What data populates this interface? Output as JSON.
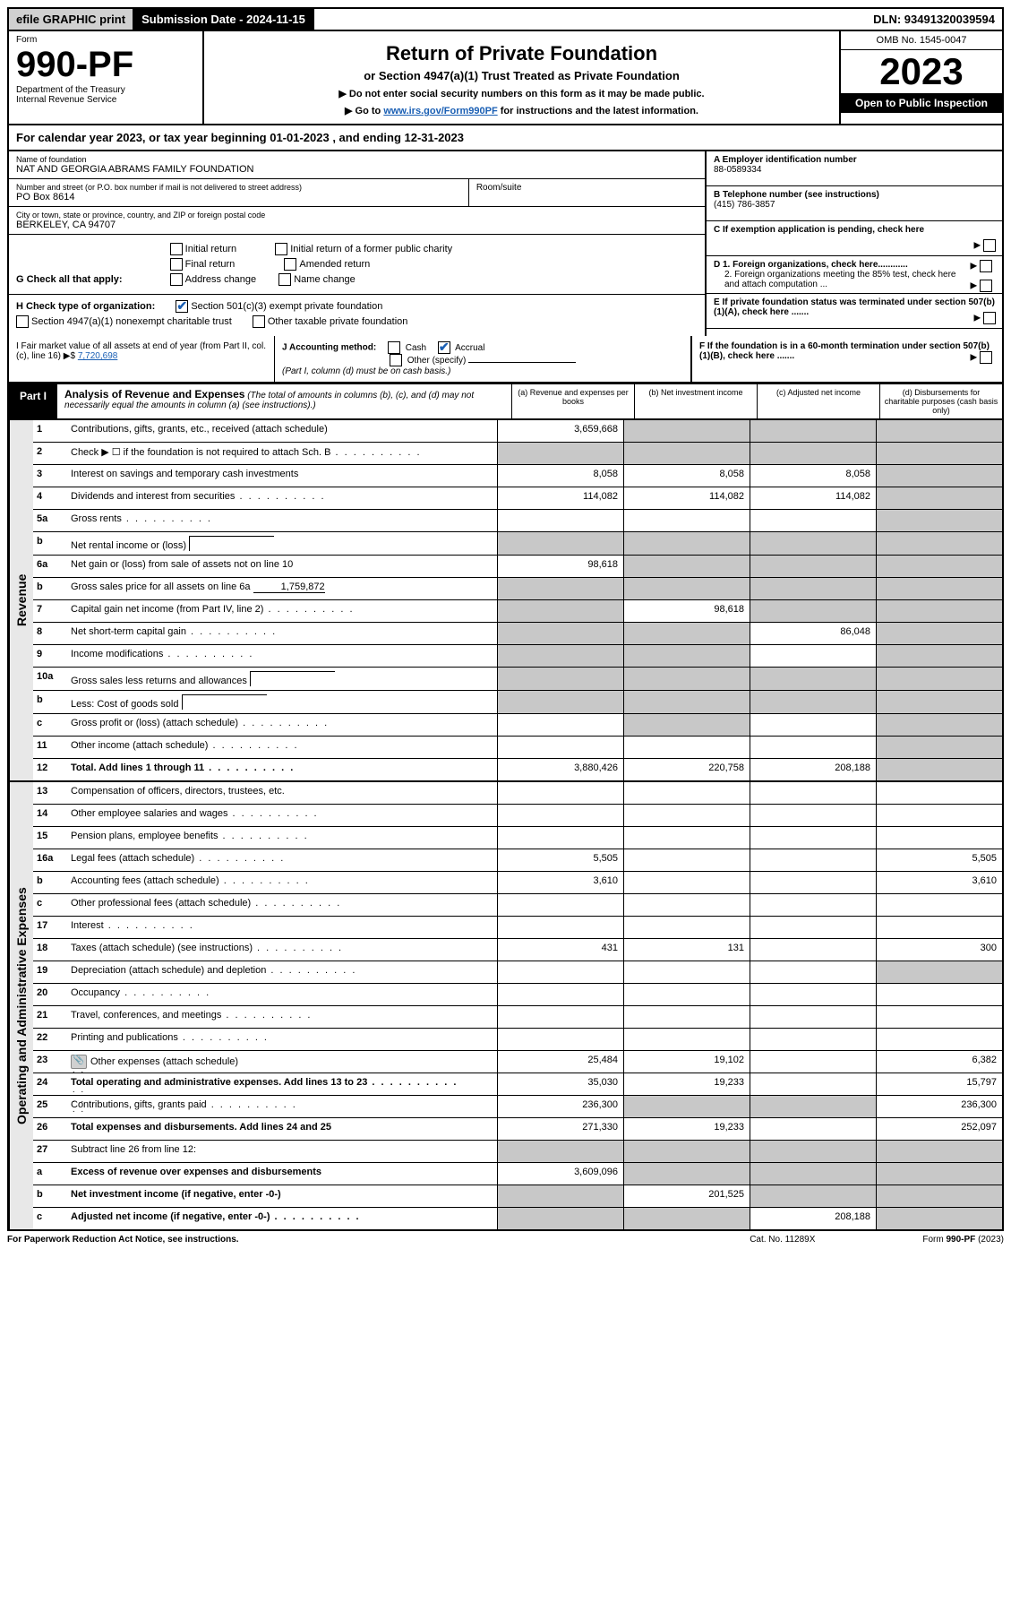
{
  "top": {
    "efile": "efile GRAPHIC print",
    "submission_label": "Submission Date - 2024-11-15",
    "dln": "DLN: 93491320039594"
  },
  "header": {
    "form_word": "Form",
    "form_number": "990-PF",
    "dept": "Department of the Treasury",
    "irs": "Internal Revenue Service",
    "title": "Return of Private Foundation",
    "subtitle": "or Section 4947(a)(1) Trust Treated as Private Foundation",
    "notice1": "▶ Do not enter social security numbers on this form as it may be made public.",
    "notice2_prefix": "▶ Go to ",
    "notice2_link": "www.irs.gov/Form990PF",
    "notice2_suffix": " for instructions and the latest information.",
    "omb": "OMB No. 1545-0047",
    "year": "2023",
    "open_public": "Open to Public Inspection"
  },
  "calendar": "For calendar year 2023, or tax year beginning 01-01-2023             , and ending 12-31-2023",
  "foundation": {
    "name_label": "Name of foundation",
    "name": "NAT AND GEORGIA ABRAMS FAMILY FOUNDATION",
    "address_label": "Number and street (or P.O. box number if mail is not delivered to street address)",
    "address": "PO Box 8614",
    "room_label": "Room/suite",
    "city_label": "City or town, state or province, country, and ZIP or foreign postal code",
    "city": "BERKELEY, CA  94707"
  },
  "right_info": {
    "a_label": "A Employer identification number",
    "a_value": "88-0589334",
    "b_label": "B Telephone number (see instructions)",
    "b_value": "(415) 786-3857",
    "c_label": "C If exemption application is pending, check here",
    "d1_label": "D 1. Foreign organizations, check here............",
    "d2_label": "2. Foreign organizations meeting the 85% test, check here and attach computation ...",
    "e_label": "E If private foundation status was terminated under section 507(b)(1)(A), check here .......",
    "f_label": "F If the foundation is in a 60-month termination under section 507(b)(1)(B), check here ......."
  },
  "g_section": {
    "label": "G Check all that apply:",
    "initial": "Initial return",
    "initial_former": "Initial return of a former public charity",
    "final": "Final return",
    "amended": "Amended return",
    "address_change": "Address change",
    "name_change": "Name change"
  },
  "h_section": {
    "label": "H Check type of organization:",
    "opt1": "Section 501(c)(3) exempt private foundation",
    "opt2": "Section 4947(a)(1) nonexempt charitable trust",
    "opt3": "Other taxable private foundation"
  },
  "i_section": {
    "label": "I Fair market value of all assets at end of year (from Part II, col. (c), line 16) ▶$",
    "value": "7,720,698"
  },
  "j_section": {
    "label": "J Accounting method:",
    "cash": "Cash",
    "accrual": "Accrual",
    "other": "Other (specify)",
    "note": "(Part I, column (d) must be on cash basis.)"
  },
  "part1": {
    "label": "Part I",
    "title": "Analysis of Revenue and Expenses",
    "subtitle": "(The total of amounts in columns (b), (c), and (d) may not necessarily equal the amounts in column (a) (see instructions).)",
    "col_a": "(a) Revenue and expenses per books",
    "col_b": "(b) Net investment income",
    "col_c": "(c) Adjusted net income",
    "col_d": "(d) Disbursements for charitable purposes (cash basis only)"
  },
  "side_labels": {
    "revenue": "Revenue",
    "expenses": "Operating and Administrative Expenses"
  },
  "revenue_rows": [
    {
      "num": "1",
      "desc": "Contributions, gifts, grants, etc., received (attach schedule)",
      "a": "3,659,668",
      "b": "",
      "c": "",
      "d": "",
      "grey_b": true,
      "grey_c": true,
      "grey_d": true
    },
    {
      "num": "2",
      "desc": "Check ▶ ☐ if the foundation is not required to attach Sch. B",
      "a": "",
      "b": "",
      "c": "",
      "d": "",
      "grey_a": true,
      "grey_b": true,
      "grey_c": true,
      "grey_d": true,
      "dots": true
    },
    {
      "num": "3",
      "desc": "Interest on savings and temporary cash investments",
      "a": "8,058",
      "b": "8,058",
      "c": "8,058",
      "d": "",
      "grey_d": true
    },
    {
      "num": "4",
      "desc": "Dividends and interest from securities",
      "a": "114,082",
      "b": "114,082",
      "c": "114,082",
      "d": "",
      "grey_d": true,
      "dots": true
    },
    {
      "num": "5a",
      "desc": "Gross rents",
      "a": "",
      "b": "",
      "c": "",
      "d": "",
      "grey_d": true,
      "dots": true
    },
    {
      "num": "b",
      "desc": "Net rental income or (loss)",
      "a": "",
      "b": "",
      "c": "",
      "d": "",
      "inline_box": true,
      "grey_a": true,
      "grey_b": true,
      "grey_c": true,
      "grey_d": true
    },
    {
      "num": "6a",
      "desc": "Net gain or (loss) from sale of assets not on line 10",
      "a": "98,618",
      "b": "",
      "c": "",
      "d": "",
      "grey_b": true,
      "grey_c": true,
      "grey_d": true
    },
    {
      "num": "b",
      "desc": "Gross sales price for all assets on line 6a",
      "a": "",
      "b": "",
      "c": "",
      "d": "",
      "underline_val": "1,759,872",
      "grey_a": true,
      "grey_b": true,
      "grey_c": true,
      "grey_d": true
    },
    {
      "num": "7",
      "desc": "Capital gain net income (from Part IV, line 2)",
      "a": "",
      "b": "98,618",
      "c": "",
      "d": "",
      "grey_a": true,
      "grey_c": true,
      "grey_d": true,
      "dots": true
    },
    {
      "num": "8",
      "desc": "Net short-term capital gain",
      "a": "",
      "b": "",
      "c": "86,048",
      "d": "",
      "grey_a": true,
      "grey_b": true,
      "grey_d": true,
      "dots": true
    },
    {
      "num": "9",
      "desc": "Income modifications",
      "a": "",
      "b": "",
      "c": "",
      "d": "",
      "grey_a": true,
      "grey_b": true,
      "grey_d": true,
      "dots": true
    },
    {
      "num": "10a",
      "desc": "Gross sales less returns and allowances",
      "a": "",
      "b": "",
      "c": "",
      "d": "",
      "inline_box": true,
      "grey_a": true,
      "grey_b": true,
      "grey_c": true,
      "grey_d": true
    },
    {
      "num": "b",
      "desc": "Less: Cost of goods sold",
      "a": "",
      "b": "",
      "c": "",
      "d": "",
      "inline_box": true,
      "grey_a": true,
      "grey_b": true,
      "grey_c": true,
      "grey_d": true,
      "dots": true
    },
    {
      "num": "c",
      "desc": "Gross profit or (loss) (attach schedule)",
      "a": "",
      "b": "",
      "c": "",
      "d": "",
      "grey_b": true,
      "grey_d": true,
      "dots": true
    },
    {
      "num": "11",
      "desc": "Other income (attach schedule)",
      "a": "",
      "b": "",
      "c": "",
      "d": "",
      "grey_d": true,
      "dots": true
    },
    {
      "num": "12",
      "desc": "Total. Add lines 1 through 11",
      "a": "3,880,426",
      "b": "220,758",
      "c": "208,188",
      "d": "",
      "bold": true,
      "grey_d": true,
      "dots": true
    }
  ],
  "expense_rows": [
    {
      "num": "13",
      "desc": "Compensation of officers, directors, trustees, etc.",
      "a": "",
      "b": "",
      "c": "",
      "d": ""
    },
    {
      "num": "14",
      "desc": "Other employee salaries and wages",
      "a": "",
      "b": "",
      "c": "",
      "d": "",
      "dots": true
    },
    {
      "num": "15",
      "desc": "Pension plans, employee benefits",
      "a": "",
      "b": "",
      "c": "",
      "d": "",
      "dots": true
    },
    {
      "num": "16a",
      "desc": "Legal fees (attach schedule)",
      "a": "5,505",
      "b": "",
      "c": "",
      "d": "5,505",
      "dots": true
    },
    {
      "num": "b",
      "desc": "Accounting fees (attach schedule)",
      "a": "3,610",
      "b": "",
      "c": "",
      "d": "3,610",
      "dots": true
    },
    {
      "num": "c",
      "desc": "Other professional fees (attach schedule)",
      "a": "",
      "b": "",
      "c": "",
      "d": "",
      "dots": true
    },
    {
      "num": "17",
      "desc": "Interest",
      "a": "",
      "b": "",
      "c": "",
      "d": "",
      "dots": true
    },
    {
      "num": "18",
      "desc": "Taxes (attach schedule) (see instructions)",
      "a": "431",
      "b": "131",
      "c": "",
      "d": "300",
      "dots": true
    },
    {
      "num": "19",
      "desc": "Depreciation (attach schedule) and depletion",
      "a": "",
      "b": "",
      "c": "",
      "d": "",
      "grey_d": true,
      "dots": true
    },
    {
      "num": "20",
      "desc": "Occupancy",
      "a": "",
      "b": "",
      "c": "",
      "d": "",
      "dots": true
    },
    {
      "num": "21",
      "desc": "Travel, conferences, and meetings",
      "a": "",
      "b": "",
      "c": "",
      "d": "",
      "dots": true
    },
    {
      "num": "22",
      "desc": "Printing and publications",
      "a": "",
      "b": "",
      "c": "",
      "d": "",
      "dots": true
    },
    {
      "num": "23",
      "desc": "Other expenses (attach schedule)",
      "a": "25,484",
      "b": "19,102",
      "c": "",
      "d": "6,382",
      "clip": true,
      "dots": true
    },
    {
      "num": "24",
      "desc": "Total operating and administrative expenses. Add lines 13 to 23",
      "a": "35,030",
      "b": "19,233",
      "c": "",
      "d": "15,797",
      "bold": true,
      "dots": true
    },
    {
      "num": "25",
      "desc": "Contributions, gifts, grants paid",
      "a": "236,300",
      "b": "",
      "c": "",
      "d": "236,300",
      "grey_b": true,
      "grey_c": true,
      "dots": true
    },
    {
      "num": "26",
      "desc": "Total expenses and disbursements. Add lines 24 and 25",
      "a": "271,330",
      "b": "19,233",
      "c": "",
      "d": "252,097",
      "bold": true
    },
    {
      "num": "27",
      "desc": "Subtract line 26 from line 12:",
      "a": "",
      "b": "",
      "c": "",
      "d": "",
      "grey_a": true,
      "grey_b": true,
      "grey_c": true,
      "grey_d": true
    },
    {
      "num": "a",
      "desc": "Excess of revenue over expenses and disbursements",
      "a": "3,609,096",
      "b": "",
      "c": "",
      "d": "",
      "bold": true,
      "grey_b": true,
      "grey_c": true,
      "grey_d": true
    },
    {
      "num": "b",
      "desc": "Net investment income (if negative, enter -0-)",
      "a": "",
      "b": "201,525",
      "c": "",
      "d": "",
      "bold": true,
      "grey_a": true,
      "grey_c": true,
      "grey_d": true
    },
    {
      "num": "c",
      "desc": "Adjusted net income (if negative, enter -0-)",
      "a": "",
      "b": "",
      "c": "208,188",
      "d": "",
      "bold": true,
      "grey_a": true,
      "grey_b": true,
      "grey_d": true,
      "dots": true
    }
  ],
  "footer": {
    "left": "For Paperwork Reduction Act Notice, see instructions.",
    "center": "Cat. No. 11289X",
    "right": "Form 990-PF (2023)"
  }
}
